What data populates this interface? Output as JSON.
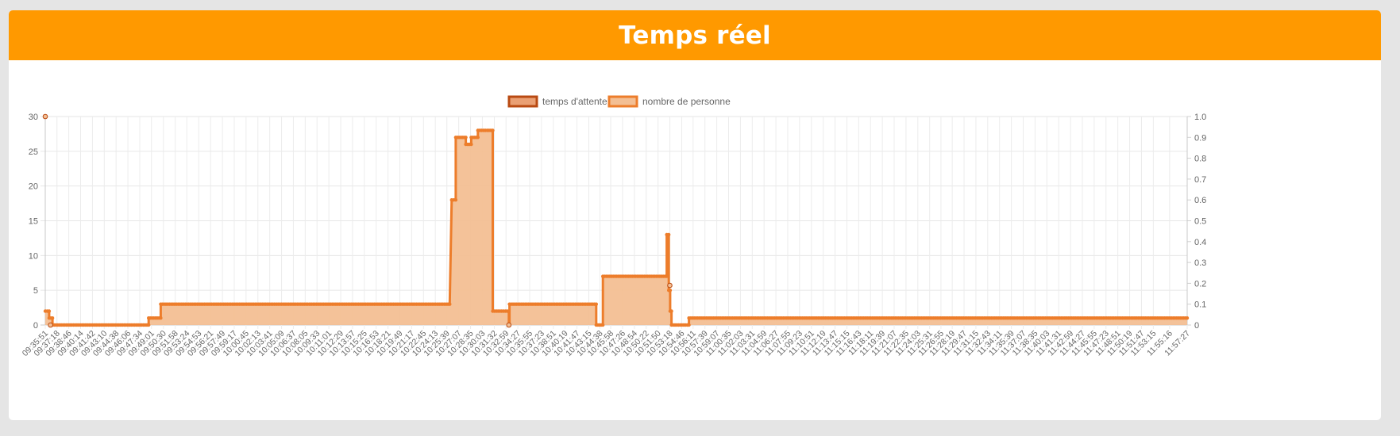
{
  "header": {
    "title": "Temps réel"
  },
  "colors": {
    "header_bg": "#ff9900",
    "series1_border": "#b94a12",
    "series1_fill": "#eaa074",
    "series2_border": "#ed7d2b",
    "series2_fill": "#f3bf94"
  },
  "chart_data": {
    "type": "line",
    "title": "",
    "legend_position": "top",
    "grid": true,
    "xlabel": "",
    "ylabel": "",
    "ylim": [
      0,
      30
    ],
    "y_ticks": [
      0,
      5,
      10,
      15,
      20,
      25,
      30
    ],
    "y2lim": [
      0,
      1
    ],
    "y2_ticks": [
      "0",
      "0.1",
      "0.2",
      "0.3",
      "0.4",
      "0.5",
      "0.6",
      "0.7",
      "0.8",
      "0.9",
      "1.0"
    ],
    "x_tick_labels": [
      "09:35:51",
      "09:37:18",
      "09:38:46",
      "09:40:14",
      "09:41:42",
      "09:43:10",
      "09:44:38",
      "09:46:06",
      "09:47:34",
      "09:49:01",
      "09:50:30",
      "09:51:58",
      "09:53:24",
      "09:54:53",
      "09:56:21",
      "09:57:49",
      "09:59:17",
      "10:00:45",
      "10:02:13",
      "10:03:41",
      "10:05:09",
      "10:06:37",
      "10:08:05",
      "10:09:33",
      "10:11:01",
      "10:12:29",
      "10:13:57",
      "10:15:25",
      "10:16:53",
      "10:18:21",
      "10:19:49",
      "10:21:17",
      "10:22:45",
      "10:24:13",
      "10:25:39",
      "10:27:07",
      "10:28:35",
      "10:30:03",
      "10:31:32",
      "10:32:59",
      "10:34:27",
      "10:35:55",
      "10:37:23",
      "10:38:51",
      "10:40:19",
      "10:41:47",
      "10:43:15",
      "10:44:38",
      "10:45:58",
      "10:47:26",
      "10:48:54",
      "10:50:22",
      "10:51:50",
      "10:53:18",
      "10:54:46",
      "10:56:11",
      "10:57:39",
      "10:59:07",
      "11:00:35",
      "11:02:03",
      "11:03:31",
      "11:04:59",
      "11:06:27",
      "11:07:55",
      "11:09:23",
      "11:10:51",
      "11:12:19",
      "11:13:47",
      "11:15:15",
      "11:16:43",
      "11:18:11",
      "11:19:39",
      "11:21:07",
      "11:22:35",
      "11:24:03",
      "11:25:31",
      "11:26:55",
      "11:28:19",
      "11:29:47",
      "11:31:15",
      "11:32:43",
      "11:34:11",
      "11:35:39",
      "11:37:07",
      "11:38:35",
      "11:40:03",
      "11:41:31",
      "11:42:59",
      "11:44:27",
      "11:45:55",
      "11:47:23",
      "11:48:51",
      "11:50:19",
      "11:51:47",
      "11:53:15",
      "11:55:16",
      "11:57:27"
    ],
    "series": [
      {
        "name": "temps d'attente",
        "axis": "right",
        "points": [
          {
            "x": "09:35:51",
            "y": 1.0
          },
          {
            "x": "09:36:30",
            "y": 0
          },
          {
            "x": "10:33:20",
            "y": 0
          },
          {
            "x": "10:53:18",
            "y": 0.19
          }
        ]
      },
      {
        "name": "nombre de personne",
        "axis": "left",
        "segments": [
          {
            "from": "09:35:51",
            "to": "09:36:20",
            "y": 2
          },
          {
            "from": "09:36:20",
            "to": "09:36:45",
            "y": 1
          },
          {
            "from": "09:36:45",
            "to": "09:48:40",
            "y": 0
          },
          {
            "from": "09:48:40",
            "to": "09:50:10",
            "y": 1
          },
          {
            "from": "09:50:10",
            "to": "10:26:00",
            "y": 3
          },
          {
            "from": "10:26:15",
            "to": "10:26:45",
            "y": 18
          },
          {
            "from": "10:26:45",
            "to": "10:28:00",
            "y": 27
          },
          {
            "from": "10:28:00",
            "to": "10:28:40",
            "y": 26
          },
          {
            "from": "10:28:40",
            "to": "10:29:30",
            "y": 27
          },
          {
            "from": "10:29:30",
            "to": "10:31:20",
            "y": 28
          },
          {
            "from": "10:31:20",
            "to": "10:33:20",
            "y": 2
          },
          {
            "from": "10:33:20",
            "to": "10:33:25",
            "y": 0
          },
          {
            "from": "10:33:25",
            "to": "10:44:10",
            "y": 3
          },
          {
            "from": "10:44:10",
            "to": "10:45:00",
            "y": 0
          },
          {
            "from": "10:45:00",
            "to": "10:52:55",
            "y": 7
          },
          {
            "from": "10:52:55",
            "to": "10:53:10",
            "y": 13
          },
          {
            "from": "10:53:10",
            "to": "10:53:20",
            "y": 5
          },
          {
            "from": "10:53:20",
            "to": "10:53:30",
            "y": 2
          },
          {
            "from": "10:53:30",
            "to": "10:55:40",
            "y": 0
          },
          {
            "from": "10:55:40",
            "to": "11:57:27",
            "y": 1
          }
        ]
      }
    ]
  }
}
